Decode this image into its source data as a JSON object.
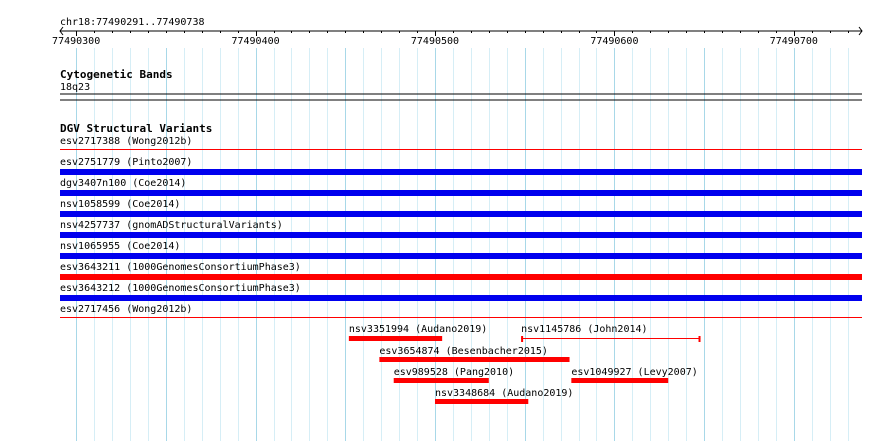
{
  "ruler": {
    "location": "chr18:77490291..77490738",
    "start": 77490291,
    "end": 77490738,
    "ticks": [
      "77490300",
      "77490400",
      "77490500",
      "77490600",
      "77490700"
    ]
  },
  "tracks": [
    {
      "title": "Cytogenetic Bands",
      "band": "18q23"
    },
    {
      "title": "DGV Structural Variants",
      "full_features": [
        {
          "label": "esv2717388 (Wong2012b)",
          "color": "#ff0000",
          "style": "thin"
        },
        {
          "label": "esv2751779 (Pinto2007)",
          "color": "#0000ee",
          "style": "thick"
        },
        {
          "label": "dgv3407n100 (Coe2014)",
          "color": "#0000ee",
          "style": "thick"
        },
        {
          "label": "nsv1058599 (Coe2014)",
          "color": "#0000ee",
          "style": "thick"
        },
        {
          "label": "nsv4257737 (gnomADStructuralVariants)",
          "color": "#0000ee",
          "style": "thick"
        },
        {
          "label": "nsv1065955 (Coe2014)",
          "color": "#0000ee",
          "style": "thick"
        },
        {
          "label": "esv3643211 (1000GenomesConsortiumPhase3)",
          "color": "#ff0000",
          "style": "thick"
        },
        {
          "label": "esv3643212 (1000GenomesConsortiumPhase3)",
          "color": "#0000ee",
          "style": "thick"
        },
        {
          "label": "esv2717456 (Wong2012b)",
          "color": "#ff0000",
          "style": "thin"
        }
      ],
      "partial_features": [
        {
          "label": "nsv3351994 (Audano2019)",
          "start": 77490452,
          "end": 77490504,
          "color": "#ff0000",
          "style": "thick"
        },
        {
          "label": "nsv1145786 (John2014)",
          "start": 77490548,
          "end": 77490648,
          "color": "#ff0000",
          "style": "bracket"
        },
        {
          "label": "esv3654874 (Besenbacher2015)",
          "start": 77490469,
          "end": 77490575,
          "color": "#ff0000",
          "style": "thick"
        },
        {
          "label": "esv989528 (Pang2010)",
          "start": 77490477,
          "end": 77490530,
          "color": "#ff0000",
          "style": "thick"
        },
        {
          "label": "esv1049927 (Levy2007)",
          "start": 77490576,
          "end": 77490630,
          "color": "#ff0000",
          "style": "thick"
        },
        {
          "label": "nsv3348684 (Audano2019)",
          "start": 77490500,
          "end": 77490552,
          "color": "#ff0000",
          "style": "thick"
        }
      ]
    }
  ],
  "colors": {
    "grid_major": "#a8d8e8",
    "grid_minor": "#d6eef6",
    "blue": "#0000ee",
    "red": "#ff0000"
  }
}
